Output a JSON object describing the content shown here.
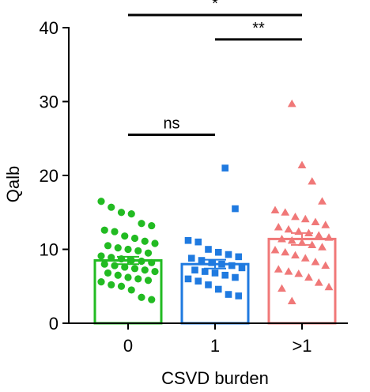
{
  "chart_data": {
    "type": "bar",
    "xlabel": "CSVD burden",
    "ylabel": "Qalb",
    "ylim": [
      0,
      40
    ],
    "yticks": [
      0,
      10,
      20,
      30,
      40
    ],
    "categories": [
      "0",
      "1",
      ">1"
    ],
    "means": [
      8.5,
      8.0,
      11.4
    ],
    "sem": [
      0.5,
      0.6,
      0.8
    ],
    "colors": [
      "#22bb22",
      "#1f7ae0",
      "#f07878"
    ],
    "markers": [
      "circle",
      "square",
      "triangle"
    ],
    "points": [
      [
        16.5,
        15.7,
        15.0,
        14.8,
        13.5,
        13.2,
        12.6,
        12.4,
        11.8,
        11.5,
        11.1,
        10.8,
        10.5,
        10.2,
        10.0,
        9.8,
        9.5,
        9.1,
        8.9,
        8.7,
        8.5,
        8.4,
        8.2,
        8.0,
        7.8,
        7.6,
        7.4,
        7.2,
        7.0,
        6.8,
        6.5,
        6.2,
        6.0,
        5.8,
        5.6,
        5.2,
        5.0,
        4.5,
        3.5,
        3.2
      ],
      [
        21.0,
        15.5,
        11.2,
        11.0,
        10.0,
        9.6,
        9.3,
        9.0,
        8.8,
        8.5,
        8.2,
        8.0,
        7.8,
        7.5,
        7.2,
        7.0,
        6.8,
        6.5,
        6.2,
        6.0,
        5.7,
        5.2,
        4.6,
        3.9,
        3.7
      ],
      [
        29.7,
        21.4,
        19.2,
        16.5,
        15.3,
        15.0,
        14.4,
        14.1,
        13.7,
        13.3,
        13.0,
        12.7,
        12.4,
        12.2,
        11.9,
        11.6,
        11.4,
        11.2,
        10.9,
        10.6,
        10.3,
        9.9,
        9.6,
        9.2,
        8.8,
        8.3,
        7.8,
        7.3,
        7.0,
        6.7,
        6.2,
        5.5,
        4.9,
        4.7,
        3.0
      ]
    ],
    "comparisons": [
      {
        "from": 0,
        "to": 2,
        "y": 40,
        "label": "*"
      },
      {
        "from": 1,
        "to": 2,
        "y": 36.7,
        "label": "**"
      },
      {
        "from": 0,
        "to": 1,
        "y": 23.8,
        "label": "ns"
      }
    ]
  }
}
